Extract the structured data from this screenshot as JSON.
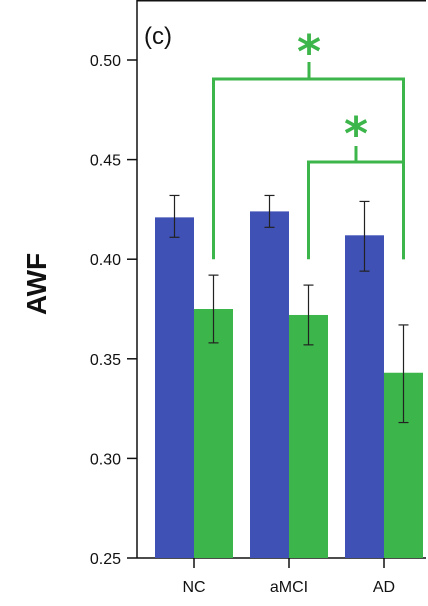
{
  "chart_data": {
    "type": "bar",
    "panel_label": "(c)",
    "ylabel": "AWF",
    "xlabel": "",
    "categories": [
      "NC",
      "aMCI",
      "AD"
    ],
    "ylim": [
      0.25,
      0.5
    ],
    "yticks": [
      "0.25",
      "0.30",
      "0.35",
      "0.40",
      "0.45",
      "0.50"
    ],
    "grid": false,
    "series": [
      {
        "color": "#3f51b5",
        "values": [
          0.421,
          0.424,
          0.412
        ],
        "err_low": [
          0.411,
          0.416,
          0.394
        ],
        "err_high": [
          0.432,
          0.432,
          0.429
        ]
      },
      {
        "color": "#3cb54a",
        "values": [
          0.375,
          0.372,
          0.343
        ],
        "err_low": [
          0.358,
          0.357,
          0.318
        ],
        "err_high": [
          0.392,
          0.387,
          0.367
        ]
      }
    ],
    "annotations": [
      {
        "text": "*",
        "from": "NC",
        "to": "AD",
        "color": "#3cb54a"
      },
      {
        "text": "*",
        "from": "aMCI",
        "to": "AD",
        "color": "#3cb54a"
      }
    ]
  }
}
